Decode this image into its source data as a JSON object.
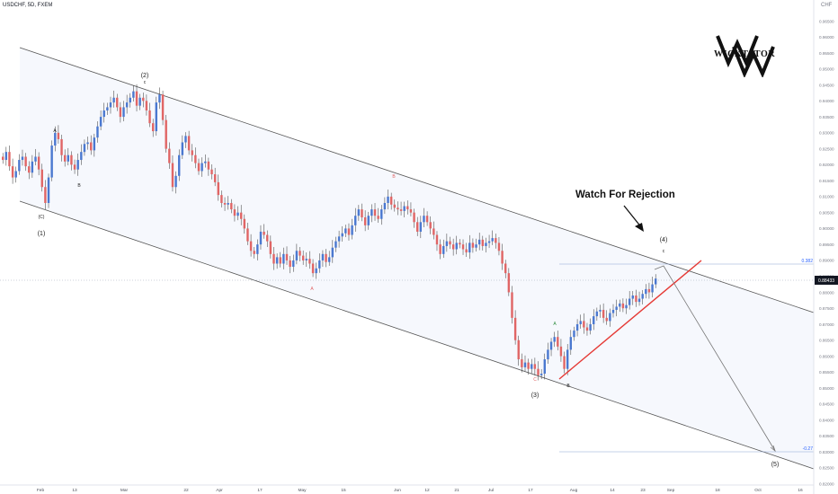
{
  "header": {
    "symbol": "USDCHF, 5D, FXEM",
    "currency": "CHF"
  },
  "logo": {
    "text": "WICKTATOR"
  },
  "colors": {
    "up": "#4a78d0",
    "down": "#e06565",
    "channel": "#555555",
    "trend": "#e53935",
    "fib": "#2962ff",
    "projection": "#777777"
  },
  "chart_data": {
    "type": "candlestick",
    "x_tick_labels": [
      "Feb",
      "13",
      "Mar",
      "22",
      "Apr",
      "17",
      "May",
      "15",
      "Jun",
      "12",
      "21",
      "Jul",
      "17",
      "Aug",
      "14",
      "23",
      "Sep",
      "18",
      "Oct",
      "16"
    ],
    "y_tick_labels": [
      "0.96500",
      "0.96000",
      "0.95500",
      "0.95000",
      "0.94500",
      "0.94000",
      "0.93500",
      "0.93000",
      "0.92500",
      "0.92000",
      "0.91500",
      "0.91000",
      "0.90500",
      "0.90000",
      "0.89500",
      "0.89000",
      "0.88500",
      "0.88000",
      "0.87500",
      "0.87000",
      "0.86500",
      "0.86000",
      "0.85500",
      "0.85000",
      "0.84500",
      "0.84000",
      "0.83500",
      "0.83000",
      "0.82500",
      "0.82000"
    ],
    "ylim": [
      0.8196,
      0.9674
    ],
    "last_price": "0.88433",
    "closes": [
      0.9215,
      0.924,
      0.9195,
      0.916,
      0.918,
      0.9215,
      0.9225,
      0.9195,
      0.9175,
      0.921,
      0.9225,
      0.9185,
      0.913,
      0.908,
      0.916,
      0.926,
      0.93,
      0.928,
      0.923,
      0.921,
      0.923,
      0.92,
      0.9185,
      0.9215,
      0.924,
      0.9265,
      0.927,
      0.9245,
      0.9285,
      0.932,
      0.935,
      0.937,
      0.938,
      0.9395,
      0.941,
      0.938,
      0.935,
      0.938,
      0.9395,
      0.941,
      0.943,
      0.9385,
      0.941,
      0.94,
      0.937,
      0.933,
      0.9305,
      0.9395,
      0.942,
      0.934,
      0.925,
      0.9205,
      0.913,
      0.9165,
      0.923,
      0.927,
      0.929,
      0.9245,
      0.923,
      0.9205,
      0.918,
      0.9205,
      0.921,
      0.9185,
      0.917,
      0.9145,
      0.9105,
      0.908,
      0.9075,
      0.908,
      0.906,
      0.904,
      0.905,
      0.903,
      0.9,
      0.896,
      0.893,
      0.892,
      0.895,
      0.899,
      0.898,
      0.896,
      0.892,
      0.889,
      0.891,
      0.889,
      0.892,
      0.89,
      0.888,
      0.89,
      0.893,
      0.8915,
      0.89,
      0.8905,
      0.889,
      0.886,
      0.8875,
      0.89,
      0.892,
      0.8895,
      0.891,
      0.894,
      0.896,
      0.8975,
      0.8985,
      0.9,
      0.898,
      0.901,
      0.904,
      0.906,
      0.9035,
      0.901,
      0.904,
      0.906,
      0.904,
      0.903,
      0.906,
      0.908,
      0.91,
      0.9075,
      0.9065,
      0.906,
      0.9055,
      0.907,
      0.906,
      0.905,
      0.902,
      0.899,
      0.902,
      0.904,
      0.902,
      0.9,
      0.898,
      0.895,
      0.892,
      0.8945,
      0.896,
      0.895,
      0.8935,
      0.8955,
      0.895,
      0.8935,
      0.8925,
      0.8955,
      0.894,
      0.895,
      0.8965,
      0.8945,
      0.8955,
      0.896,
      0.897,
      0.8955,
      0.893,
      0.889,
      0.886,
      0.88,
      0.872,
      0.865,
      0.859,
      0.8565,
      0.858,
      0.856,
      0.8575,
      0.856,
      0.854,
      0.8545,
      0.859,
      0.862,
      0.8645,
      0.866,
      0.863,
      0.86,
      0.856,
      0.862,
      0.866,
      0.868,
      0.87,
      0.871,
      0.869,
      0.868,
      0.87,
      0.8725,
      0.874,
      0.8745,
      0.872,
      0.871,
      0.8735,
      0.8745,
      0.8755,
      0.8765,
      0.875,
      0.876,
      0.878,
      0.879,
      0.877,
      0.878,
      0.8795,
      0.881,
      0.88,
      0.8825,
      0.8843
    ],
    "labels": {
      "wave_1": "(1)",
      "wave_2": "(2)",
      "wave_3": "(3)",
      "wave_4": "(4)",
      "wave_5": "(5)",
      "wave_c_low": "(C)",
      "sub_a": "A",
      "sub_b": "B",
      "sub_c": "C",
      "sub_c2": "c",
      "annotation": "Watch For Rejection",
      "fib_382": "0.382",
      "fib_minus27": "-0.27"
    }
  }
}
